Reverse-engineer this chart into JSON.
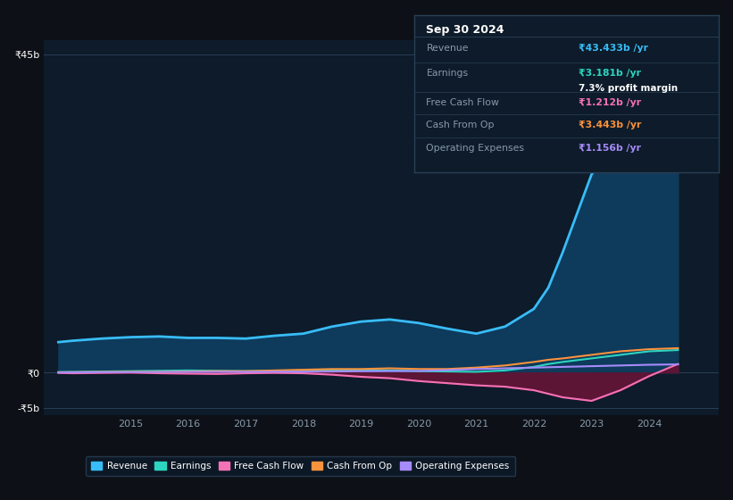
{
  "bg_color": "#0d1117",
  "plot_bg_color": "#0d1b2a",
  "grid_color": "#2a3f55",
  "years": [
    2013.75,
    2014.0,
    2014.5,
    2015,
    2015.5,
    2016,
    2016.5,
    2017,
    2017.5,
    2018,
    2018.5,
    2019,
    2019.5,
    2020,
    2020.5,
    2021,
    2021.5,
    2022,
    2022.25,
    2022.5,
    2023,
    2023.5,
    2024,
    2024.5
  ],
  "revenue": [
    4.3,
    4.5,
    4.8,
    5.0,
    5.1,
    4.9,
    4.9,
    4.8,
    5.2,
    5.5,
    6.5,
    7.2,
    7.5,
    7.0,
    6.2,
    5.5,
    6.5,
    9.0,
    12.0,
    17.0,
    28.0,
    33.0,
    40.0,
    43.433
  ],
  "earnings": [
    0.08,
    0.1,
    0.15,
    0.2,
    0.25,
    0.3,
    0.25,
    0.2,
    0.25,
    0.3,
    0.3,
    0.35,
    0.3,
    0.2,
    0.15,
    0.1,
    0.3,
    0.8,
    1.2,
    1.5,
    2.0,
    2.5,
    3.0,
    3.181
  ],
  "free_cash_flow": [
    -0.05,
    -0.1,
    -0.05,
    0.0,
    -0.1,
    -0.15,
    -0.2,
    -0.1,
    -0.05,
    -0.1,
    -0.3,
    -0.6,
    -0.8,
    -1.2,
    -1.5,
    -1.8,
    -2.0,
    -2.5,
    -3.0,
    -3.5,
    -4.0,
    -2.5,
    -0.5,
    1.212
  ],
  "cash_from_op": [
    0.03,
    0.05,
    0.08,
    0.1,
    0.1,
    0.15,
    0.2,
    0.2,
    0.3,
    0.4,
    0.5,
    0.5,
    0.6,
    0.5,
    0.5,
    0.7,
    1.0,
    1.5,
    1.8,
    2.0,
    2.5,
    3.0,
    3.3,
    3.443
  ],
  "operating_expenses": [
    0.0,
    0.02,
    0.05,
    0.05,
    0.08,
    0.1,
    0.1,
    0.1,
    0.12,
    0.12,
    0.15,
    0.18,
    0.2,
    0.22,
    0.35,
    0.5,
    0.6,
    0.7,
    0.75,
    0.8,
    0.9,
    1.0,
    1.1,
    1.156
  ],
  "revenue_color": "#38bdf8",
  "revenue_fill_color": "#0e3a5c",
  "earnings_color": "#2dd4bf",
  "free_cash_flow_color": "#f472b6",
  "free_cash_flow_fill_color": "#5c1535",
  "cash_from_op_color": "#fb923c",
  "operating_expenses_color": "#a78bfa",
  "ylim": [
    -6,
    47
  ],
  "xlim": [
    2013.5,
    2025.2
  ],
  "ytick_vals": [
    -5,
    0,
    45
  ],
  "ytick_labels": [
    "-₹5b",
    "₹0",
    "₹45b"
  ],
  "xtick_years": [
    2015,
    2016,
    2017,
    2018,
    2019,
    2020,
    2021,
    2022,
    2023,
    2024
  ],
  "info_box": {
    "title": "Sep 30 2024",
    "title_color": "white",
    "border_color": "#2a3f55",
    "bg": "#0d1b2a",
    "rows": [
      {
        "label": "Revenue",
        "label_color": "#8899aa",
        "value": "₹43.433b /yr",
        "value_color": "#38bdf8",
        "extra": null,
        "extra_color": null
      },
      {
        "label": "Earnings",
        "label_color": "#8899aa",
        "value": "₹3.181b /yr",
        "value_color": "#2dd4bf",
        "extra": "7.3% profit margin",
        "extra_color": "white"
      },
      {
        "label": "Free Cash Flow",
        "label_color": "#8899aa",
        "value": "₹1.212b /yr",
        "value_color": "#f472b6",
        "extra": null,
        "extra_color": null
      },
      {
        "label": "Cash From Op",
        "label_color": "#8899aa",
        "value": "₹3.443b /yr",
        "value_color": "#fb923c",
        "extra": null,
        "extra_color": null
      },
      {
        "label": "Operating Expenses",
        "label_color": "#8899aa",
        "value": "₹1.156b /yr",
        "value_color": "#a78bfa",
        "extra": null,
        "extra_color": null
      }
    ]
  },
  "legend_items": [
    {
      "label": "Revenue",
      "color": "#38bdf8"
    },
    {
      "label": "Earnings",
      "color": "#2dd4bf"
    },
    {
      "label": "Free Cash Flow",
      "color": "#f472b6"
    },
    {
      "label": "Cash From Op",
      "color": "#fb923c"
    },
    {
      "label": "Operating Expenses",
      "color": "#a78bfa"
    }
  ]
}
